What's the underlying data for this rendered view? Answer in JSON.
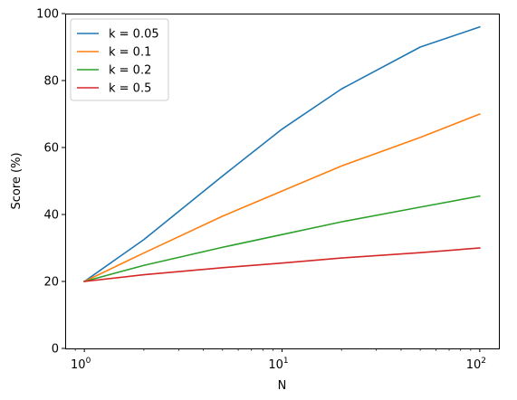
{
  "chart_data": {
    "type": "line",
    "title": "",
    "xlabel": "N",
    "ylabel": "Score (%)",
    "xscale": "log",
    "xlim": [
      0.8,
      125
    ],
    "ylim": [
      0,
      100
    ],
    "grid": false,
    "legend_position": "top-left",
    "x": [
      1,
      2,
      5,
      10,
      20,
      50,
      100
    ],
    "x_ticks": [
      {
        "value": 1,
        "base": "10",
        "exp": "0"
      },
      {
        "value": 10,
        "base": "10",
        "exp": "1"
      },
      {
        "value": 100,
        "base": "10",
        "exp": "2"
      }
    ],
    "y_ticks": [
      {
        "value": 0,
        "label": "0"
      },
      {
        "value": 20,
        "label": "20"
      },
      {
        "value": 40,
        "label": "40"
      },
      {
        "value": 60,
        "label": "60"
      },
      {
        "value": 80,
        "label": "80"
      },
      {
        "value": 100,
        "label": "100"
      }
    ],
    "series": [
      {
        "name": "k = 0.05",
        "color": "#1f77b4",
        "values": [
          20,
          32.5,
          51.5,
          65.5,
          77.5,
          90,
          96
        ]
      },
      {
        "name": "k = 0.1",
        "color": "#ff7f0e",
        "values": [
          20,
          28.5,
          39.5,
          47,
          54.5,
          63,
          70
        ]
      },
      {
        "name": "k = 0.2",
        "color": "#2ca02c",
        "values": [
          20,
          24.8,
          30.2,
          34,
          37.8,
          42.2,
          45.5
        ]
      },
      {
        "name": "k = 0.5",
        "color": "#d62728",
        "values": [
          20,
          22,
          24.1,
          25.5,
          27,
          28.6,
          30
        ]
      }
    ]
  }
}
